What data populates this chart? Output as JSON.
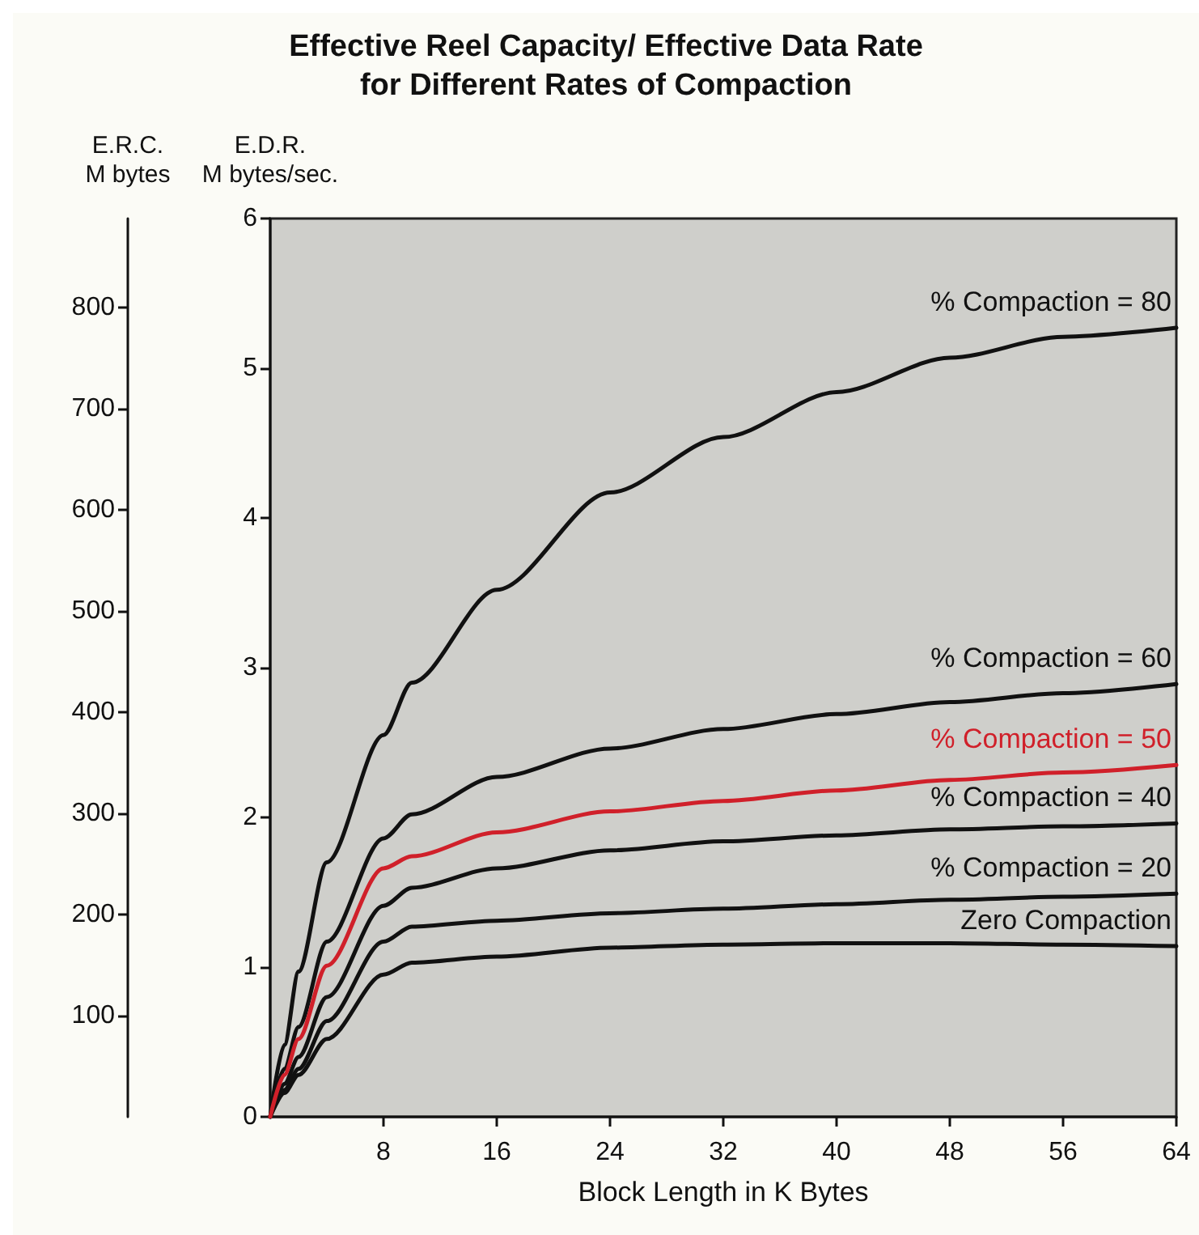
{
  "chart_data": {
    "type": "line",
    "title": "Effective Reel Capacity/ Effective Data Rate\nfor Different Rates of Compaction",
    "xlabel": "Block Length in K Bytes",
    "ylabel": "E.D.R.\nM bytes/sec.",
    "y2label": "E.R.C.\nM bytes",
    "x": [
      0,
      1,
      2,
      4,
      8,
      10,
      16,
      24,
      32,
      40,
      48,
      56,
      64
    ],
    "series": [
      {
        "name": "% Compaction = 80",
        "color": "#111111",
        "values": [
          0,
          0.48,
          0.97,
          1.7,
          2.55,
          2.9,
          3.52,
          4.17,
          4.54,
          4.84,
          5.07,
          5.21,
          5.27
        ]
      },
      {
        "name": "% Compaction = 60",
        "color": "#111111",
        "values": [
          0,
          0.32,
          0.6,
          1.17,
          1.86,
          2.02,
          2.27,
          2.46,
          2.59,
          2.69,
          2.77,
          2.83,
          2.89
        ]
      },
      {
        "name": "% Compaction = 50",
        "color": "#d0202a",
        "values": [
          0,
          0.28,
          0.52,
          1.01,
          1.66,
          1.74,
          1.9,
          2.04,
          2.11,
          2.18,
          2.25,
          2.3,
          2.35
        ]
      },
      {
        "name": "% Compaction = 40",
        "color": "#111111",
        "values": [
          0,
          0.22,
          0.4,
          0.8,
          1.41,
          1.53,
          1.66,
          1.78,
          1.84,
          1.88,
          1.92,
          1.94,
          1.96
        ]
      },
      {
        "name": "% Compaction = 20",
        "color": "#111111",
        "values": [
          0,
          0.18,
          0.32,
          0.64,
          1.17,
          1.27,
          1.31,
          1.36,
          1.39,
          1.42,
          1.45,
          1.47,
          1.49
        ]
      },
      {
        "name": "Zero Compaction",
        "color": "#111111",
        "values": [
          0,
          0.16,
          0.28,
          0.52,
          0.95,
          1.03,
          1.07,
          1.13,
          1.15,
          1.16,
          1.16,
          1.15,
          1.14
        ]
      }
    ],
    "xlim": [
      0,
      64
    ],
    "xticks": [
      8,
      16,
      24,
      32,
      40,
      48,
      56,
      64
    ],
    "ylim": [
      0,
      6
    ],
    "yticks": [
      0,
      1,
      2,
      3,
      4,
      5,
      6
    ],
    "y2lim": [
      0,
      888
    ],
    "y2ticks": [
      100,
      200,
      300,
      400,
      500,
      600,
      700,
      800
    ],
    "grid": false,
    "legend": false,
    "marker": "none",
    "line_style": "solid"
  }
}
